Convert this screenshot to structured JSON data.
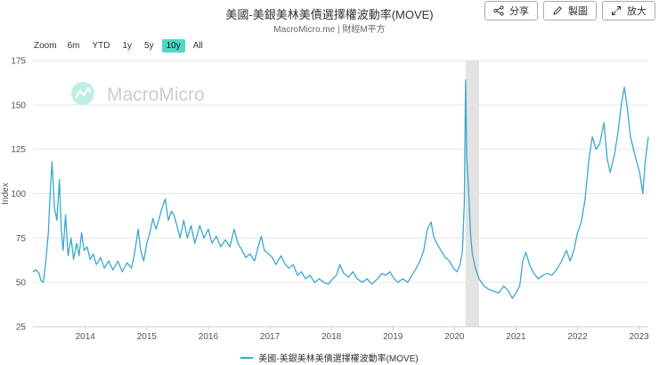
{
  "header": {
    "title": "美國-美銀美林美債選擇權波動率(MOVE)",
    "subtitle": "MacroMicro.me | 財經M平方"
  },
  "toolbar": {
    "share_label": "分享",
    "draw_label": "製圖",
    "enlarge_label": "放大"
  },
  "zoom": {
    "label": "Zoom",
    "options": [
      "6m",
      "YTD",
      "1y",
      "5y",
      "10y",
      "All"
    ],
    "active": "10y"
  },
  "watermark": "MacroMicro",
  "colors": {
    "series": "#3aa8cf",
    "zoom_active": "#4ed8c3",
    "recession_band": "#e3e3e3",
    "grid": "#e6e6e6"
  },
  "chart_data": {
    "type": "line",
    "title": "美國-美銀美林美債選擇權波動率(MOVE)",
    "ylabel": "Index",
    "xlabel": "",
    "ylim": [
      25,
      175
    ],
    "yticks": [
      25,
      50,
      75,
      100,
      125,
      150,
      175
    ],
    "xticks": [
      "2014",
      "2015",
      "2016",
      "2017",
      "2018",
      "2019",
      "2020",
      "2021",
      "2022",
      "2023"
    ],
    "xlim": [
      2013.17,
      2023.17
    ],
    "grid": true,
    "legend": "bottom",
    "shaded_period": [
      2020.2,
      2020.42
    ],
    "series": [
      {
        "name": "美國-美銀美林美債選擇權波動率(MOVE)",
        "points": [
          [
            2013.17,
            56
          ],
          [
            2013.22,
            57
          ],
          [
            2013.27,
            55
          ],
          [
            2013.3,
            51
          ],
          [
            2013.34,
            50
          ],
          [
            2013.38,
            62
          ],
          [
            2013.42,
            78
          ],
          [
            2013.45,
            100
          ],
          [
            2013.48,
            118
          ],
          [
            2013.52,
            92
          ],
          [
            2013.56,
            85
          ],
          [
            2013.6,
            108
          ],
          [
            2013.63,
            80
          ],
          [
            2013.66,
            68
          ],
          [
            2013.7,
            88
          ],
          [
            2013.74,
            65
          ],
          [
            2013.79,
            75
          ],
          [
            2013.83,
            63
          ],
          [
            2013.88,
            72
          ],
          [
            2013.92,
            65
          ],
          [
            2013.96,
            78
          ],
          [
            2014.0,
            68
          ],
          [
            2014.05,
            70
          ],
          [
            2014.1,
            63
          ],
          [
            2014.15,
            66
          ],
          [
            2014.2,
            60
          ],
          [
            2014.27,
            64
          ],
          [
            2014.33,
            58
          ],
          [
            2014.4,
            62
          ],
          [
            2014.47,
            57
          ],
          [
            2014.55,
            62
          ],
          [
            2014.62,
            56
          ],
          [
            2014.7,
            61
          ],
          [
            2014.77,
            58
          ],
          [
            2014.82,
            66
          ],
          [
            2014.88,
            80
          ],
          [
            2014.92,
            68
          ],
          [
            2014.97,
            62
          ],
          [
            2015.02,
            72
          ],
          [
            2015.07,
            78
          ],
          [
            2015.12,
            86
          ],
          [
            2015.17,
            80
          ],
          [
            2015.22,
            86
          ],
          [
            2015.27,
            92
          ],
          [
            2015.32,
            97
          ],
          [
            2015.37,
            85
          ],
          [
            2015.42,
            90
          ],
          [
            2015.46,
            88
          ],
          [
            2015.51,
            82
          ],
          [
            2015.56,
            75
          ],
          [
            2015.62,
            85
          ],
          [
            2015.68,
            75
          ],
          [
            2015.74,
            82
          ],
          [
            2015.8,
            72
          ],
          [
            2015.88,
            82
          ],
          [
            2015.95,
            75
          ],
          [
            2016.02,
            80
          ],
          [
            2016.08,
            72
          ],
          [
            2016.15,
            76
          ],
          [
            2016.22,
            70
          ],
          [
            2016.3,
            74
          ],
          [
            2016.37,
            70
          ],
          [
            2016.44,
            80
          ],
          [
            2016.5,
            72
          ],
          [
            2016.57,
            68
          ],
          [
            2016.63,
            64
          ],
          [
            2016.7,
            66
          ],
          [
            2016.77,
            62
          ],
          [
            2016.83,
            70
          ],
          [
            2016.88,
            76
          ],
          [
            2016.93,
            68
          ],
          [
            2017.0,
            66
          ],
          [
            2017.06,
            64
          ],
          [
            2017.12,
            60
          ],
          [
            2017.2,
            65
          ],
          [
            2017.27,
            60
          ],
          [
            2017.33,
            58
          ],
          [
            2017.4,
            60
          ],
          [
            2017.47,
            54
          ],
          [
            2017.53,
            56
          ],
          [
            2017.6,
            52
          ],
          [
            2017.67,
            54
          ],
          [
            2017.75,
            50
          ],
          [
            2017.82,
            52
          ],
          [
            2017.9,
            50
          ],
          [
            2017.97,
            49
          ],
          [
            2018.04,
            52
          ],
          [
            2018.1,
            54
          ],
          [
            2018.16,
            60
          ],
          [
            2018.22,
            55
          ],
          [
            2018.3,
            53
          ],
          [
            2018.37,
            56
          ],
          [
            2018.44,
            52
          ],
          [
            2018.52,
            50
          ],
          [
            2018.6,
            52
          ],
          [
            2018.68,
            49
          ],
          [
            2018.77,
            52
          ],
          [
            2018.84,
            55
          ],
          [
            2018.9,
            54
          ],
          [
            2018.97,
            56
          ],
          [
            2019.04,
            52
          ],
          [
            2019.1,
            50
          ],
          [
            2019.18,
            52
          ],
          [
            2019.26,
            50
          ],
          [
            2019.33,
            54
          ],
          [
            2019.4,
            58
          ],
          [
            2019.46,
            62
          ],
          [
            2019.52,
            68
          ],
          [
            2019.58,
            80
          ],
          [
            2019.64,
            84
          ],
          [
            2019.68,
            76
          ],
          [
            2019.73,
            72
          ],
          [
            2019.8,
            68
          ],
          [
            2019.87,
            64
          ],
          [
            2019.94,
            62
          ],
          [
            2020.0,
            58
          ],
          [
            2020.06,
            56
          ],
          [
            2020.11,
            60
          ],
          [
            2020.15,
            68
          ],
          [
            2020.18,
            95
          ],
          [
            2020.2,
            164
          ],
          [
            2020.22,
            120
          ],
          [
            2020.25,
            102
          ],
          [
            2020.28,
            78
          ],
          [
            2020.31,
            66
          ],
          [
            2020.36,
            58
          ],
          [
            2020.42,
            52
          ],
          [
            2020.5,
            48
          ],
          [
            2020.58,
            46
          ],
          [
            2020.66,
            45
          ],
          [
            2020.74,
            44
          ],
          [
            2020.82,
            48
          ],
          [
            2020.9,
            45
          ],
          [
            2020.96,
            41
          ],
          [
            2021.02,
            44
          ],
          [
            2021.08,
            48
          ],
          [
            2021.13,
            62
          ],
          [
            2021.18,
            67
          ],
          [
            2021.24,
            60
          ],
          [
            2021.31,
            55
          ],
          [
            2021.38,
            52
          ],
          [
            2021.46,
            54
          ],
          [
            2021.52,
            55
          ],
          [
            2021.6,
            54
          ],
          [
            2021.68,
            57
          ],
          [
            2021.76,
            62
          ],
          [
            2021.84,
            68
          ],
          [
            2021.9,
            62
          ],
          [
            2021.96,
            68
          ],
          [
            2022.02,
            78
          ],
          [
            2022.08,
            84
          ],
          [
            2022.14,
            96
          ],
          [
            2022.2,
            118
          ],
          [
            2022.26,
            132
          ],
          [
            2022.32,
            125
          ],
          [
            2022.38,
            128
          ],
          [
            2022.45,
            140
          ],
          [
            2022.5,
            120
          ],
          [
            2022.55,
            112
          ],
          [
            2022.62,
            122
          ],
          [
            2022.68,
            135
          ],
          [
            2022.73,
            150
          ],
          [
            2022.78,
            160
          ],
          [
            2022.83,
            148
          ],
          [
            2022.88,
            132
          ],
          [
            2022.93,
            125
          ],
          [
            2022.98,
            118
          ],
          [
            2023.03,
            112
          ],
          [
            2023.08,
            100
          ],
          [
            2023.12,
            118
          ],
          [
            2023.17,
            132
          ]
        ]
      }
    ]
  }
}
